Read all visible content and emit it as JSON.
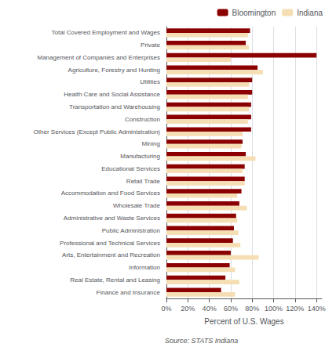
{
  "chart_data": {
    "type": "bar",
    "orientation": "horizontal",
    "categories": [
      "Total Covered Employment and Wages",
      "Private",
      "Management of Companies and Enterprises",
      "Agriculture, Forestry and Hunting",
      "Utilities",
      "Health Care and Social Assistance",
      "Transportation and Warehousing",
      "Construction",
      "Other Services (Except Public Administration)",
      "Mining",
      "Manufacturing",
      "Educational Services",
      "Retail Trade",
      "Accommodation and Food Services",
      "Wholesale Trade",
      "Administrative and Waste Services",
      "Public Administration",
      "Professional and Technical Services",
      "Arts, Entertainment and Recreation",
      "Information",
      "Real Estate, Rental and Leasing",
      "Finance and Insurance"
    ],
    "series": [
      {
        "name": "Bloomington",
        "color": "#8B0000",
        "values": [
          78,
          74,
          140,
          85,
          80,
          80,
          79,
          79,
          79,
          71,
          74,
          73,
          73,
          70,
          68,
          65,
          63,
          62,
          60,
          59,
          55,
          51
        ]
      },
      {
        "name": "Indiana",
        "color": "#F5DEB3",
        "values": [
          76,
          77,
          60,
          90,
          77,
          76,
          77,
          76,
          71,
          70,
          83,
          71,
          73,
          66,
          75,
          66,
          67,
          69,
          86,
          64,
          68,
          64
        ]
      }
    ],
    "xlabel": "Percent of U.S. Wages",
    "xlim": [
      0,
      145
    ],
    "xticks": [
      {
        "value": 0,
        "label": "0%"
      },
      {
        "value": 20,
        "label": "20%"
      },
      {
        "value": 40,
        "label": "40%"
      },
      {
        "value": 60,
        "label": "60%"
      },
      {
        "value": 80,
        "label": "80%"
      },
      {
        "value": 100,
        "label": "100%"
      },
      {
        "value": 120,
        "label": "120%"
      },
      {
        "value": 140,
        "label": "140%"
      }
    ],
    "grid": true,
    "legend": "upper right",
    "annotations": [
      "Source: STATS Indiana"
    ]
  }
}
